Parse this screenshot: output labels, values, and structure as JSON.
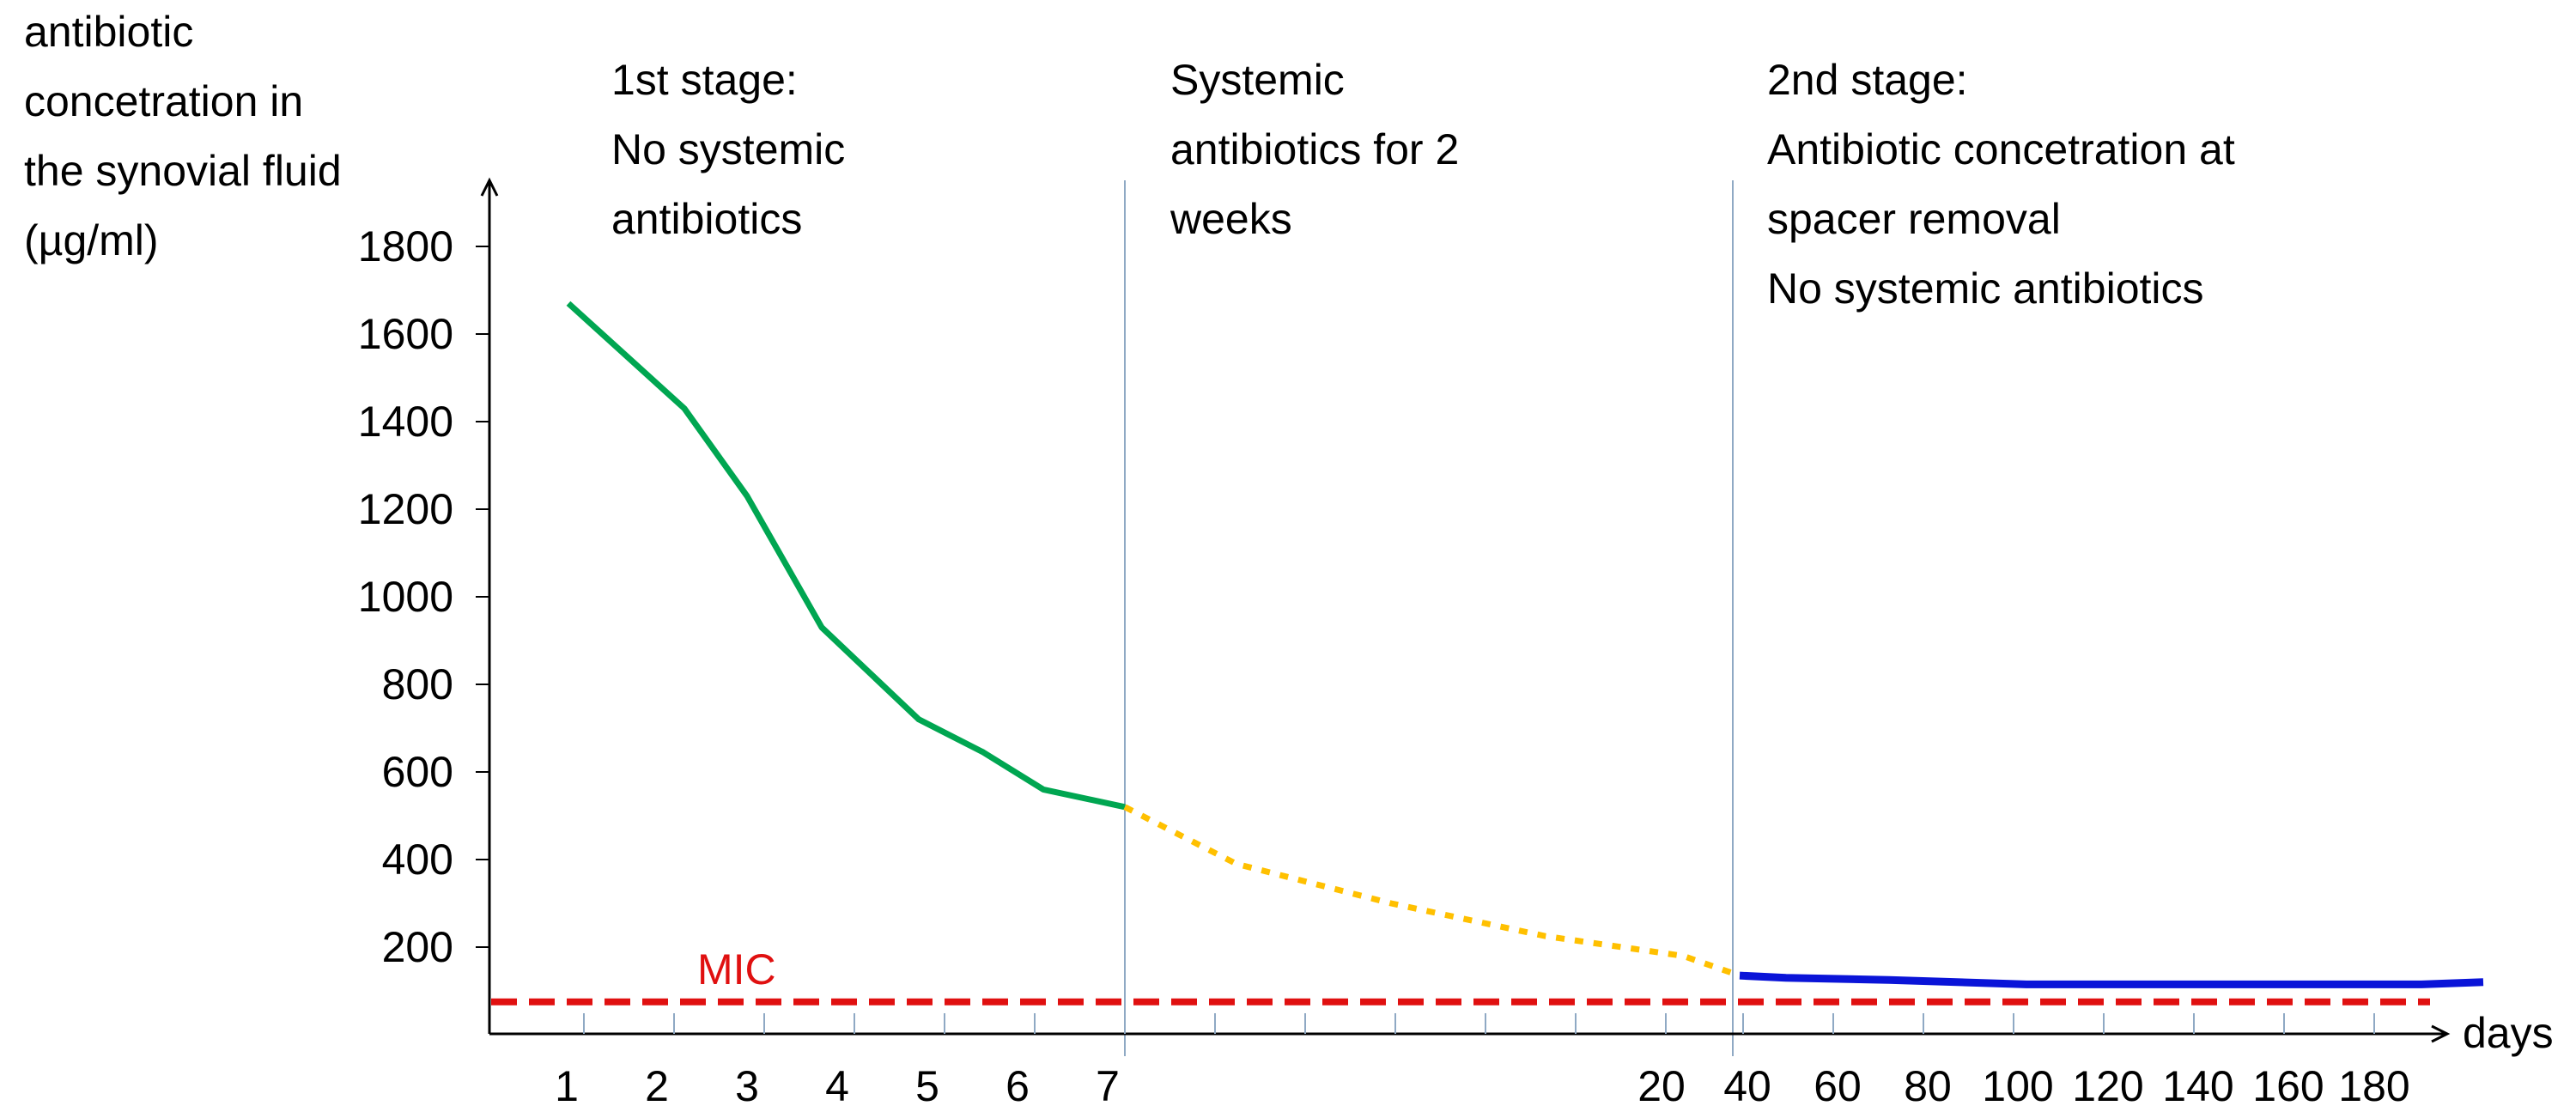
{
  "chart_data": {
    "type": "line",
    "ylabel_lines": [
      "antibiotic",
      "concetration  in",
      "the synovial fluid",
      "(µg/ml)"
    ],
    "xlabel": "days",
    "y_ticks": [
      "200",
      "400",
      "600",
      "800",
      "1000",
      "1200",
      "1400",
      "1600",
      "1800"
    ],
    "x_tick_labels": [
      "1",
      "2",
      "3",
      "4",
      "5",
      "6",
      "7",
      "20",
      "40",
      "60",
      "80",
      "100",
      "120",
      "140",
      "160",
      "180"
    ],
    "ylim": [
      0,
      1900
    ],
    "grid": false,
    "annotations": {
      "stage1": [
        "1st stage:",
        "No systemic",
        "antibiotics"
      ],
      "systemic": [
        "Systemic",
        "antibiotics for 2",
        "weeks"
      ],
      "stage2": [
        "2nd stage:",
        "Antibiotic concetration at",
        "spacer removal",
        "No systemic antibiotics"
      ],
      "mic_label": "MIC"
    },
    "colors": {
      "stage1_series": "#00a651",
      "systemic_series": "#ffc000",
      "stage2_series": "#0a14d8",
      "mic_line": "#e01010",
      "divider": "#8fa9c4"
    },
    "series": [
      {
        "x": [
          0.8,
          2.2,
          3.2,
          4.0,
          5.0,
          5.6,
          6.2,
          7.0
        ],
        "y": [
          1670,
          1430,
          1230,
          930,
          720,
          645,
          560,
          520
        ]
      },
      {
        "x": [
          7.0,
          8.5,
          10.5,
          13.5,
          17.0,
          20.8
        ],
        "y": [
          520,
          390,
          300,
          225,
          180,
          135
        ]
      },
      {
        "x": [
          20.8,
          28,
          40,
          60,
          80,
          100,
          120,
          140,
          160,
          190
        ],
        "y": [
          135,
          130,
          125,
          115,
          115,
          115,
          115,
          115,
          115,
          120
        ]
      }
    ],
    "mic_value": 75,
    "dividers_at": [
      7.0,
      20.8
    ]
  }
}
